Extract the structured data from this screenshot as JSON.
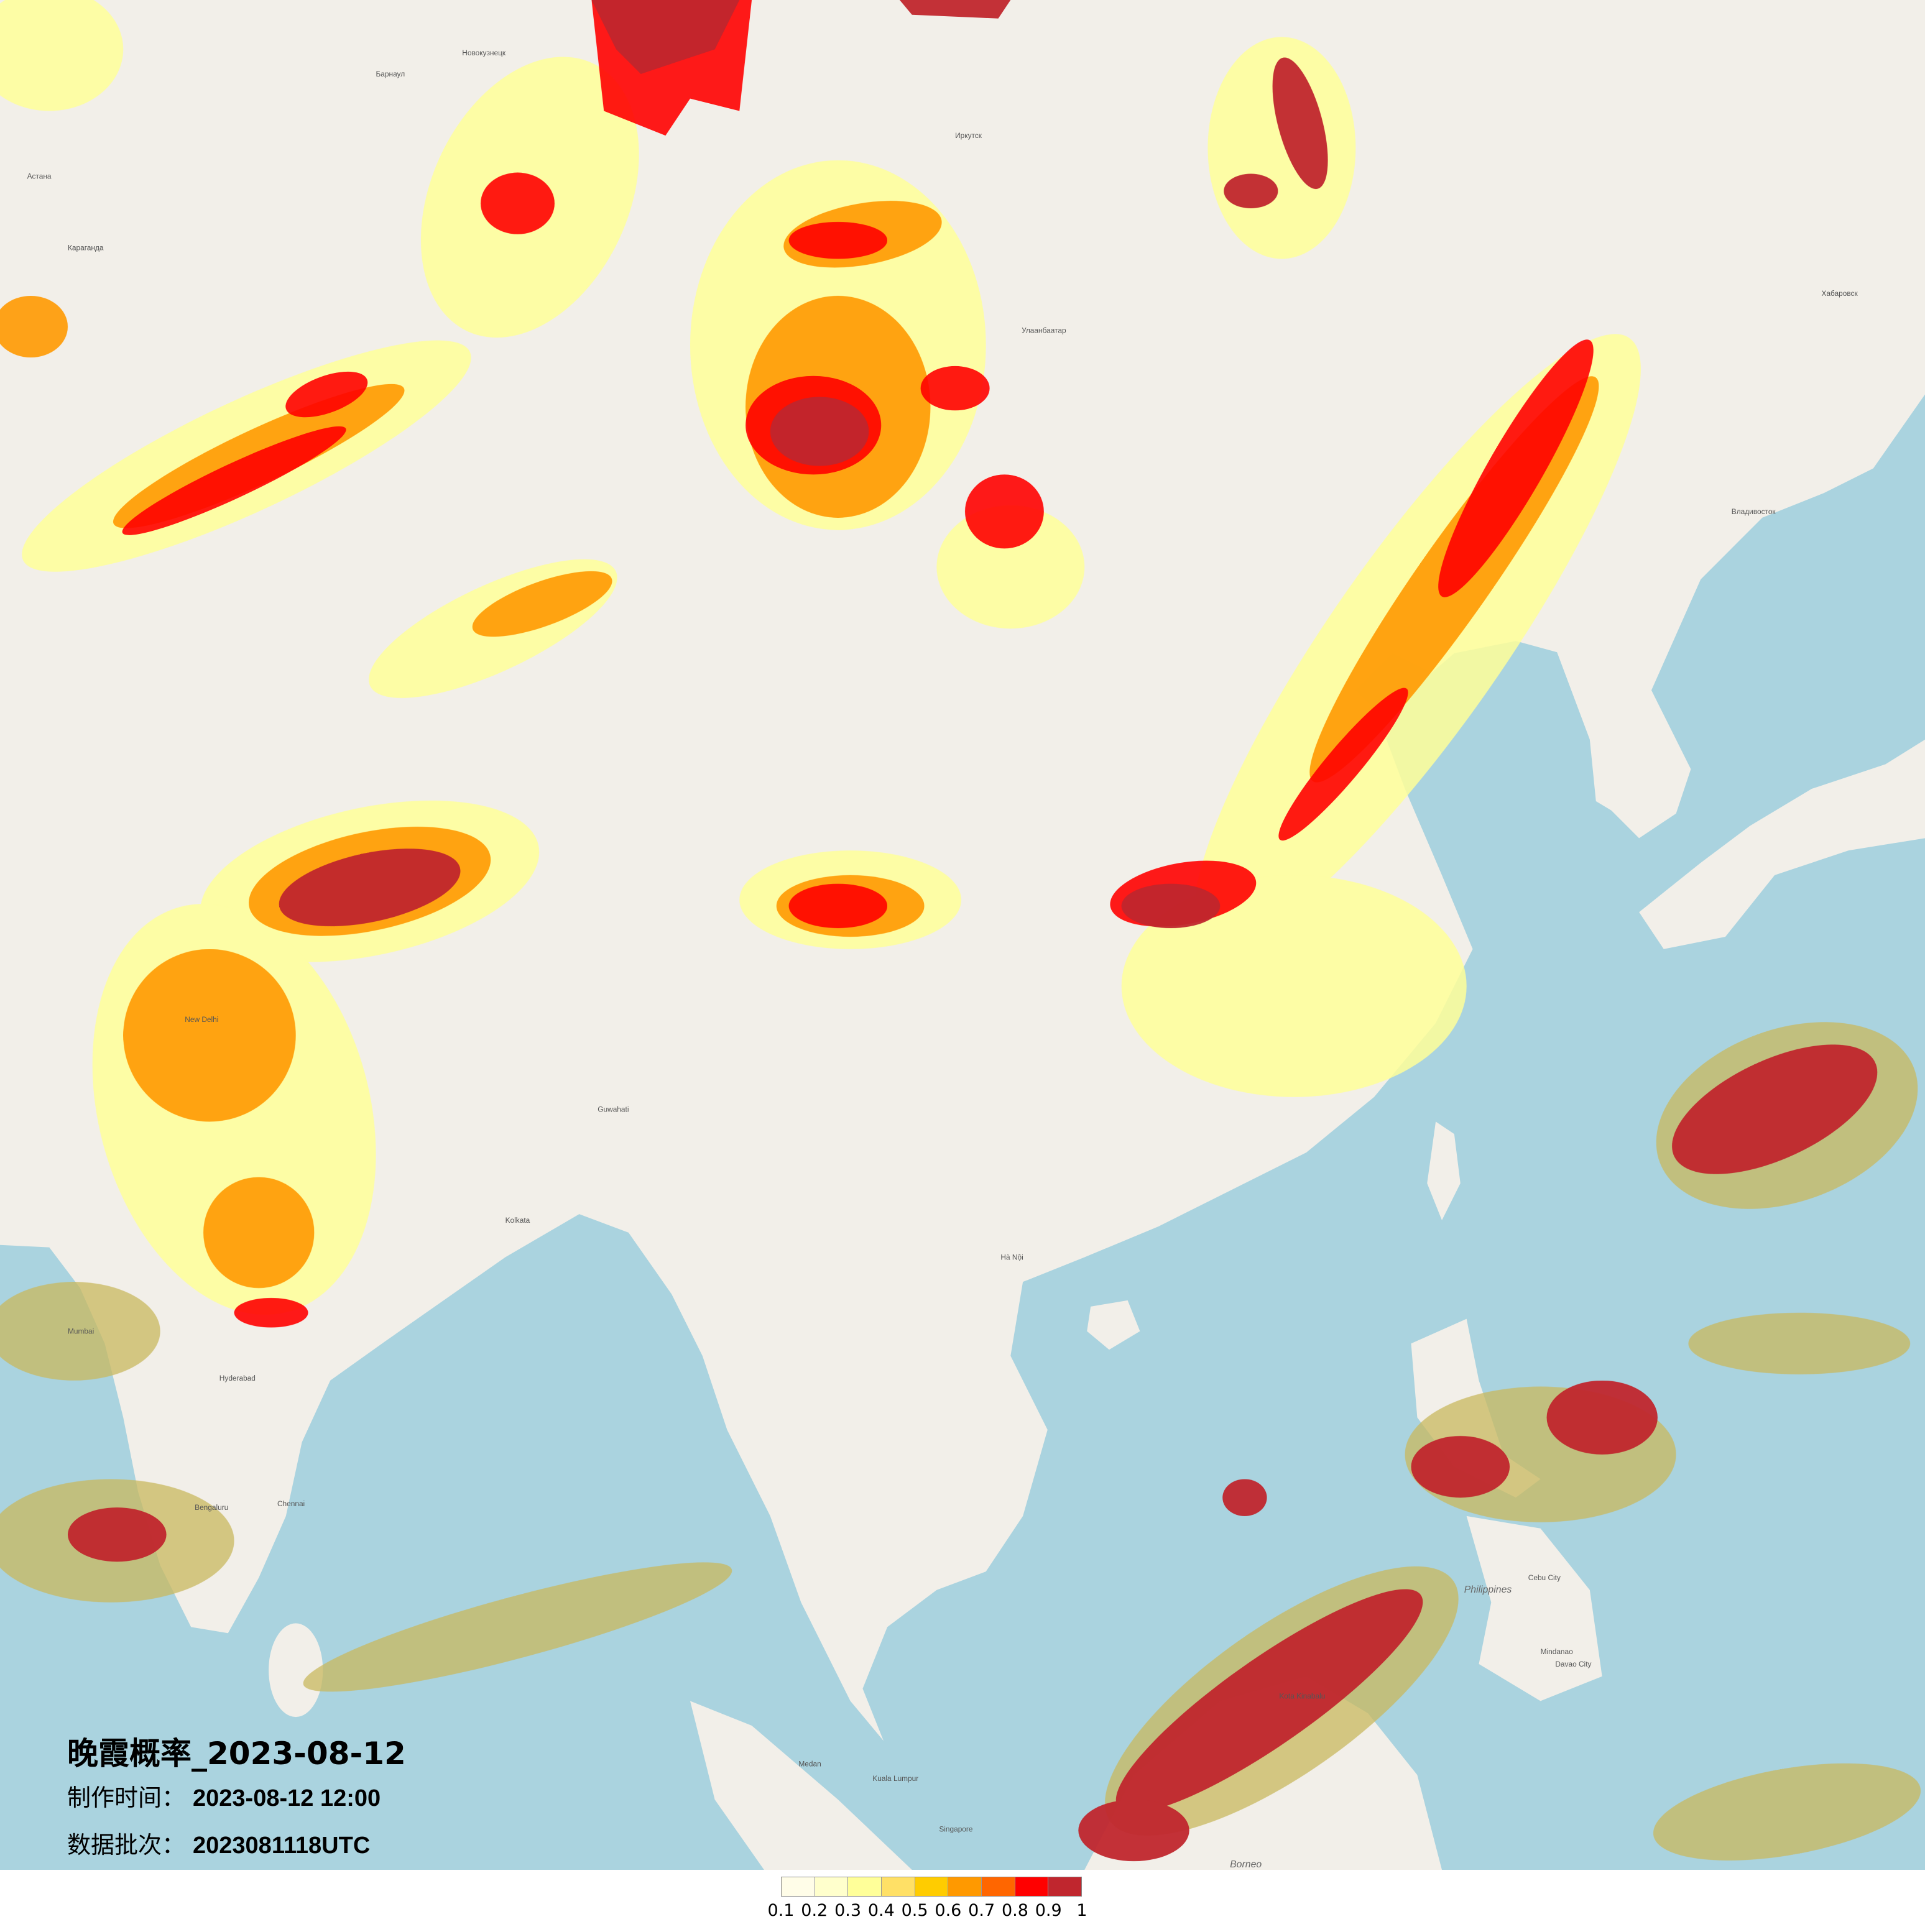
{
  "title": "晚霞概率_2023-08-12",
  "production_time": {
    "label": "制作时间：",
    "value": "2023-08-12 12:00"
  },
  "data_batch": {
    "label": "数据批次：",
    "value": "2023081118UTC"
  },
  "legend": {
    "ticks": [
      "0.1",
      "0.2",
      "0.3",
      "0.4",
      "0.5",
      "0.6",
      "0.7",
      "0.8",
      "0.9",
      "1"
    ],
    "colors": [
      "#fffde8",
      "#ffffcc",
      "#ffff99",
      "#ffe066",
      "#ffcc00",
      "#ff9900",
      "#ff6600",
      "#ff0000",
      "#c0262e"
    ]
  },
  "map": {
    "land_color": "#f2efe9",
    "sea_color": "#aad3df",
    "place_labels": [
      "Улаанбаатар",
      "Иркутск",
      "Хабаровск",
      "Владивосток",
      "Барнаул",
      "Новокузнецк",
      "Астана",
      "Караганда",
      "New Delhi",
      "Bengaluru",
      "Chennai",
      "Mumbai",
      "Hyderabad",
      "Kolkata",
      "Guwahati",
      "Hà Nội",
      "Kuala Lumpur",
      "Singapore",
      "Borneo",
      "Philippines",
      "Mindanao",
      "Cebu City",
      "Davao City",
      "Medan",
      "Kota Kinabalu"
    ]
  }
}
